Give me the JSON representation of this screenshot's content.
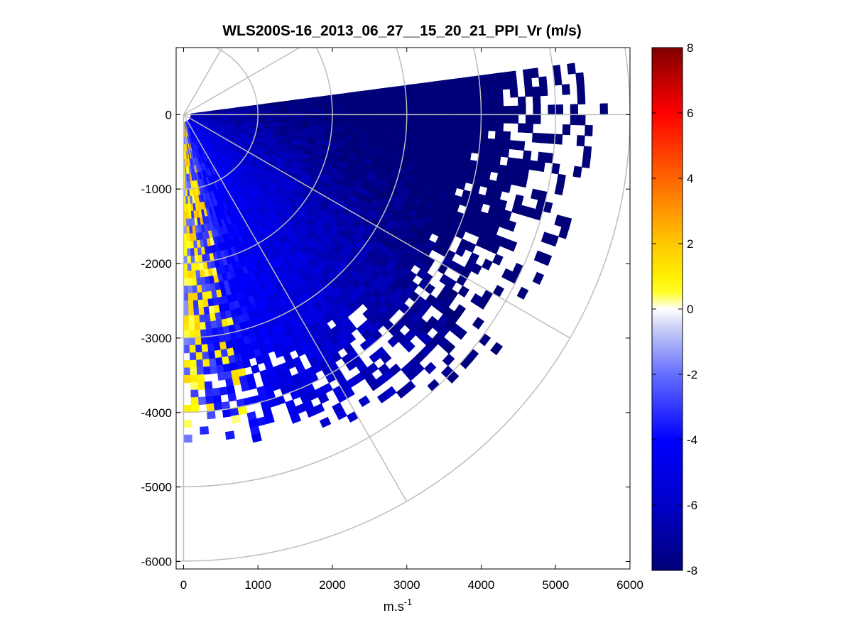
{
  "chart_data": {
    "type": "heatmap",
    "title": "WLS200S-16_2013_06_27__15_20_21_PPI_Vr (m/s)",
    "xlabel": "m.s",
    "xlabel_superscript": "-1",
    "ylabel": "",
    "xlim": [
      -100,
      6000
    ],
    "ylim": [
      -6100,
      900
    ],
    "x_ticks": [
      0,
      1000,
      2000,
      3000,
      4000,
      5000,
      6000
    ],
    "y_ticks": [
      0,
      -1000,
      -2000,
      -3000,
      -4000,
      -5000,
      -6000
    ],
    "x_tick_labels": [
      "0",
      "1000",
      "2000",
      "3000",
      "4000",
      "5000",
      "6000"
    ],
    "y_tick_labels": [
      "0",
      "-1000",
      "-2000",
      "-3000",
      "-4000",
      "-5000",
      "-6000"
    ],
    "polar_grid": {
      "origin": [
        0,
        0
      ],
      "range_rings_m": [
        1000,
        2000,
        3000,
        4000,
        5000,
        6000
      ],
      "spoke_angles_deg": [
        0,
        -30,
        -60,
        -90,
        30,
        60
      ]
    },
    "colorbar": {
      "clim": [
        -8,
        8
      ],
      "ticks": [
        8,
        6,
        4,
        2,
        0,
        -2,
        -4,
        -6,
        -8
      ],
      "tick_labels": [
        "8",
        "6",
        "4",
        "2",
        "0",
        "-2",
        "-4",
        "-6",
        "-8"
      ],
      "colormap": "white-centered diverging: dark blue (-8) to blue to light lavender (0) to yellow, orange, red, dark red (+8)"
    },
    "scan": {
      "sector_azimuth_deg": [
        -90,
        7.5
      ],
      "max_range_m": 6000,
      "range_gate_m": 100,
      "beam_step_deg": 1.5,
      "velocity_pattern": [
        {
          "zone": "near radar, westernmost beams",
          "vr_ms": [
            0,
            1.5
          ]
        },
        {
          "zone": "south-west beams, 500-4000 m",
          "vr_ms": [
            -2.5,
            -0.5
          ]
        },
        {
          "zone": "central beams, 1000-3500 m",
          "vr_ms": [
            -5,
            -3
          ]
        },
        {
          "zone": "north-east beams, 2000-4500 m",
          "vr_ms": [
            -7.5,
            -6
          ]
        }
      ]
    }
  }
}
